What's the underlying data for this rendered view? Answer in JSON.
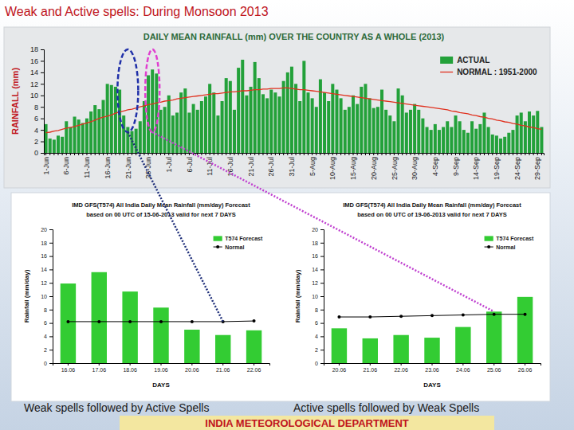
{
  "page": {
    "title": "Weak and Active spells: During Monsoon 2013",
    "captions": [
      "Weak spells followed by Active Spells",
      "Active spells followed by Weak Spells"
    ],
    "footer": "INDIA METEOROLOGICAL DEPARTMENT"
  },
  "chart_data": [
    {
      "type": "bar",
      "title": "DAILY MEAN RAINFALL (mm) OVER THE COUNTRY AS A WHOLE (2013)",
      "ylabel": "RAINFALL (mm)",
      "categories": [
        "1-Jun",
        null,
        null,
        null,
        null,
        "6-Jun",
        null,
        null,
        null,
        null,
        "11-Jun",
        null,
        null,
        null,
        null,
        "16-Jun",
        null,
        null,
        null,
        null,
        "21-Jun",
        null,
        null,
        null,
        null,
        "26-Jun",
        null,
        null,
        null,
        null,
        "1-Jul",
        null,
        null,
        null,
        null,
        "6-Jul",
        null,
        null,
        null,
        null,
        "11-Jul",
        null,
        null,
        null,
        null,
        "16-Jul",
        null,
        null,
        null,
        null,
        "21-Jul",
        null,
        null,
        null,
        null,
        "26-Jul",
        null,
        null,
        null,
        null,
        "31-Jul",
        null,
        null,
        null,
        null,
        "5-Aug",
        null,
        null,
        null,
        null,
        "10-Aug",
        null,
        null,
        null,
        null,
        "15-Aug",
        null,
        null,
        null,
        null,
        "20-Aug",
        null,
        null,
        null,
        null,
        "25-Aug",
        null,
        null,
        null,
        null,
        "30-Aug",
        null,
        null,
        null,
        null,
        "4-Sep",
        null,
        null,
        null,
        null,
        "9-Sep",
        null,
        null,
        null,
        null,
        "14-Sep",
        null,
        null,
        null,
        null,
        "19-Sep",
        null,
        null,
        null,
        null,
        "24-Sep",
        null,
        null,
        null,
        null,
        "29-Sep",
        null
      ],
      "series": [
        {
          "name": "ACTUAL",
          "type": "bar",
          "color": "#23a13a",
          "values": [
            5.0,
            2.5,
            2.3,
            3.0,
            2.8,
            5.5,
            4.5,
            6.3,
            5.8,
            5.2,
            6.0,
            7.2,
            8.3,
            7.6,
            9.2,
            12.0,
            11.8,
            11.5,
            11.0,
            6.5,
            4.5,
            3.8,
            4.2,
            5.5,
            9.0,
            13.5,
            14.5,
            13.8,
            7.5,
            8.0,
            10.0,
            6.5,
            7.0,
            10.5,
            11.2,
            7.0,
            8.5,
            7.5,
            9.0,
            9.8,
            12.0,
            10.5,
            6.5,
            9.0,
            13.0,
            12.5,
            7.5,
            14.8,
            16.2,
            10.0,
            11.5,
            15.8,
            13.0,
            10.2,
            9.5,
            11.0,
            10.5,
            9.8,
            12.5,
            14.0,
            15.0,
            12.0,
            9.0,
            16.0,
            10.5,
            9.5,
            8.0,
            12.8,
            10.5,
            9.0,
            12.0,
            11.0,
            9.5,
            7.5,
            8.0,
            10.0,
            8.5,
            11.5,
            12.0,
            9.5,
            7.8,
            8.0,
            11.0,
            7.5,
            6.5,
            5.5,
            11.2,
            10.0,
            7.0,
            7.5,
            8.5,
            7.5,
            6.0,
            4.5,
            4.0,
            5.0,
            4.0,
            4.5,
            5.5,
            4.5,
            6.5,
            5.5,
            4.0,
            3.5,
            5.5,
            4.2,
            5.0,
            7.0,
            4.5,
            3.2,
            3.0,
            2.5,
            2.8,
            3.5,
            4.0,
            6.5,
            7.0,
            5.5,
            7.2,
            6.5,
            7.3,
            4.5
          ]
        },
        {
          "name": "NORMAL : 1951-2000",
          "type": "line",
          "color": "#e0301e",
          "values": [
            3.5,
            3.6,
            3.8,
            3.9,
            4.1,
            4.3,
            4.4,
            4.6,
            4.8,
            5.0,
            5.2,
            5.4,
            5.7,
            6.0,
            6.2,
            6.4,
            6.6,
            6.9,
            7.1,
            7.3,
            7.5,
            7.6,
            7.8,
            8.0,
            8.2,
            8.4,
            8.5,
            8.7,
            8.8,
            9.0,
            9.1,
            9.2,
            9.4,
            9.5,
            9.6,
            9.7,
            9.8,
            9.9,
            10.0,
            10.1,
            10.2,
            10.3,
            10.3,
            10.4,
            10.5,
            10.6,
            10.6,
            10.7,
            10.8,
            10.8,
            10.9,
            11.0,
            11.0,
            11.1,
            11.1,
            11.2,
            11.2,
            11.2,
            11.3,
            11.3,
            11.2,
            11.1,
            11.0,
            11.0,
            10.9,
            10.8,
            10.7,
            10.6,
            10.5,
            10.4,
            10.3,
            10.2,
            10.1,
            10.0,
            9.9,
            9.8,
            9.7,
            9.6,
            9.5,
            9.4,
            9.3,
            9.2,
            9.1,
            9.0,
            8.9,
            8.8,
            8.7,
            8.6,
            8.5,
            8.4,
            8.3,
            8.2,
            8.1,
            8.0,
            7.9,
            7.8,
            7.7,
            7.6,
            7.5,
            7.3,
            7.2,
            7.0,
            6.9,
            6.8,
            6.6,
            6.5,
            6.3,
            6.2,
            6.0,
            5.9,
            5.7,
            5.6,
            5.4,
            5.3,
            5.1,
            5.0,
            4.8,
            4.7,
            4.5,
            4.4,
            4.2,
            4.1
          ]
        }
      ],
      "ylim": [
        0,
        18
      ],
      "yticks": [
        0,
        2,
        4,
        6,
        8,
        10,
        12,
        14,
        16,
        18
      ],
      "legend": "top-right",
      "grid": false
    },
    {
      "type": "bar",
      "title": "IMD GFS(T574) All India Daily Mean Rainfall (mm/day) Forecast",
      "subtitle": "based on 00 UTC of 15-06-2013 valid for next 7 DAYS",
      "xlabel": "DAYS",
      "ylabel": "Rainfall (mm/day)",
      "categories": [
        "16.06",
        "17.06",
        "18.06",
        "19.06",
        "20.06",
        "21.06",
        "22.06"
      ],
      "series": [
        {
          "name": "T574 Forecast",
          "type": "bar",
          "color": "#33cc33",
          "values": [
            11.9,
            13.6,
            10.7,
            8.3,
            5.0,
            4.2,
            4.9
          ]
        },
        {
          "name": "Normal",
          "type": "line",
          "color": "#000000",
          "marker": "circle",
          "values": [
            6.2,
            6.2,
            6.2,
            6.2,
            6.2,
            6.2,
            6.3
          ]
        }
      ],
      "ylim": [
        0,
        20
      ],
      "yticks": [
        0,
        2,
        4,
        6,
        8,
        10,
        12,
        14,
        16,
        18,
        20
      ],
      "legend": "top-right",
      "grid": false
    },
    {
      "type": "bar",
      "title": "IMD GFS(T574) All India Daily Mean Rainfall (mm/day) Forecast",
      "subtitle": "based on 00 UTC of 19-06-2013 valid for next 7 DAYS",
      "xlabel": "DAYS",
      "ylabel": "Rainfall (mm/day)",
      "categories": [
        "20.06",
        "21.06",
        "22.06",
        "23.06",
        "24.06",
        "25.06",
        "26.06"
      ],
      "series": [
        {
          "name": "T574 Forecast",
          "type": "bar",
          "color": "#33cc33",
          "values": [
            5.2,
            3.7,
            4.2,
            3.8,
            5.4,
            7.7,
            9.9
          ]
        },
        {
          "name": "Normal",
          "type": "line",
          "color": "#000000",
          "marker": "circle",
          "values": [
            6.9,
            6.9,
            7.0,
            7.1,
            7.2,
            7.3,
            7.3
          ]
        }
      ],
      "ylim": [
        0,
        20
      ],
      "yticks": [
        0,
        2,
        4,
        6,
        8,
        10,
        12,
        14,
        16,
        18,
        20
      ],
      "legend": "top-right",
      "grid": false
    }
  ]
}
